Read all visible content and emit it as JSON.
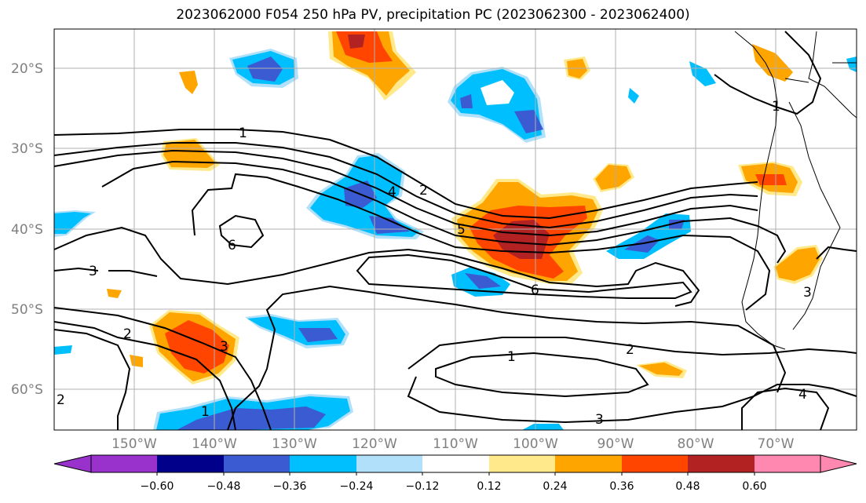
{
  "title": "2023062000 F054 250 hPa PV, precipitation PC (2023062300 - 2023062400)",
  "latitude_labels": [
    "20°S",
    "30°S",
    "40°S",
    "50°S",
    "60°S"
  ],
  "longitude_labels": [
    "150°W",
    "140°W",
    "130°W",
    "120°W",
    "110°W",
    "100°W",
    "90°W",
    "80°W",
    "70°W"
  ],
  "pv_contour_labels": [
    "1",
    "2",
    "4",
    "5",
    "6",
    "3",
    "2",
    "3",
    "6",
    "1",
    "2",
    "1",
    "3",
    "4",
    "1",
    "3",
    "2"
  ],
  "colorbar": {
    "tick_labels": [
      "−0.60",
      "−0.48",
      "−0.36",
      "−0.24",
      "−0.12",
      "0.12",
      "0.24",
      "0.36",
      "0.48",
      "0.60"
    ],
    "colors": [
      "#9932cc",
      "#00008b",
      "#3a5bd1",
      "#00bfff",
      "#b0e0fa",
      "#ffffff",
      "#ffe98a",
      "#ffa500",
      "#ff4500",
      "#b22222",
      "#ff88b0"
    ]
  }
}
